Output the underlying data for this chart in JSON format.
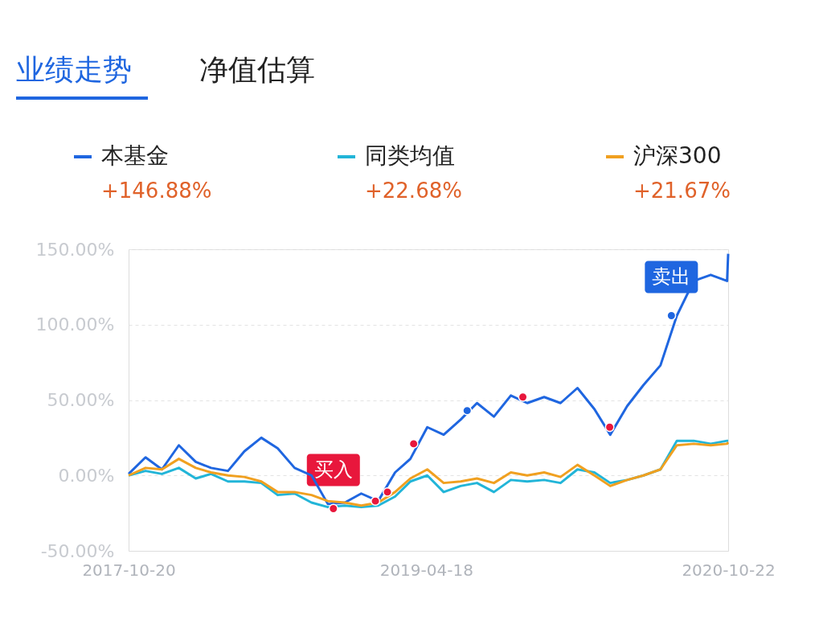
{
  "chart_data": {
    "type": "line",
    "title": "业绩走势",
    "subtitle": "净值估算",
    "x": [
      "2017-10-20",
      "2017-11-20",
      "2017-12-20",
      "2018-01-20",
      "2018-02-20",
      "2018-03-20",
      "2018-04-20",
      "2018-05-20",
      "2018-06-20",
      "2018-07-20",
      "2018-08-20",
      "2018-09-20",
      "2018-10-20",
      "2018-11-20",
      "2018-12-20",
      "2019-01-20",
      "2019-02-20",
      "2019-03-20",
      "2019-04-20",
      "2019-05-20",
      "2019-06-20",
      "2019-07-20",
      "2019-08-20",
      "2019-09-20",
      "2019-10-20",
      "2019-11-20",
      "2019-12-20",
      "2020-01-20",
      "2020-02-20",
      "2020-03-20",
      "2020-04-20",
      "2020-05-20",
      "2020-06-20",
      "2020-07-20",
      "2020-08-20",
      "2020-09-20",
      "2020-10-20",
      "2020-10-22"
    ],
    "series": [
      {
        "name": "本基金",
        "color": "#1f66e0",
        "values": [
          1,
          12,
          4,
          20,
          9,
          5,
          3,
          16,
          25,
          18,
          5,
          0,
          -19,
          -18,
          -12,
          -17,
          2,
          11,
          32,
          27,
          37,
          48,
          39,
          53,
          48,
          52,
          48,
          58,
          44,
          27,
          46,
          60,
          73,
          106,
          129,
          133,
          129,
          147
        ]
      },
      {
        "name": "同类均值",
        "color": "#22b5d8",
        "values": [
          0,
          3,
          1,
          5,
          -2,
          1,
          -4,
          -4,
          -5,
          -13,
          -12,
          -18,
          -21,
          -20,
          -21,
          -20,
          -14,
          -4,
          0,
          -11,
          -7,
          -5,
          -11,
          -3,
          -4,
          -3,
          -5,
          4,
          2,
          -5,
          -3,
          0,
          4,
          23,
          23,
          21,
          23,
          23
        ]
      },
      {
        "name": "沪深300",
        "color": "#f0a020",
        "values": [
          0,
          5,
          4,
          11,
          5,
          2,
          0,
          -1,
          -4,
          -11,
          -11,
          -13,
          -17,
          -18,
          -20,
          -18,
          -11,
          -2,
          4,
          -5,
          -4,
          -2,
          -5,
          2,
          0,
          2,
          -1,
          7,
          0,
          -7,
          -3,
          0,
          4,
          20,
          21,
          20,
          21,
          22
        ]
      },
      {
        "type": "scatter",
        "marker": "circle",
        "color": "#e8173c",
        "x": [
          "2018-10-30",
          "2019-01-15",
          "2019-02-06",
          "2019-03-26",
          "2019-10-12",
          "2020-03-19"
        ],
        "values": [
          -22,
          -17,
          -11,
          21,
          52,
          32
        ]
      },
      {
        "type": "scatter",
        "marker": "circle",
        "color": "#1f66e0",
        "x": [
          "2019-07-02",
          "2020-07-10"
        ],
        "values": [
          43,
          106
        ]
      }
    ],
    "annotations": [
      "+146.88%",
      "+22.68%",
      "+21.67%",
      {
        "text": "买入",
        "x": "2018-10-30",
        "y": -22
      },
      {
        "text": "卖出",
        "x": "2020-07-10",
        "y": 106
      }
    ],
    "xlim": [
      "2017-10-20",
      "2020-10-22"
    ],
    "xticks": [
      "2017-10-20",
      "2019-04-18",
      "2020-10-22"
    ],
    "ylim": [
      -50,
      150
    ],
    "yticks": [
      {
        "value": -50,
        "label": "-50.00%"
      },
      {
        "value": 0,
        "label": "0.00%"
      },
      {
        "value": 50,
        "label": "50.00%"
      },
      {
        "value": 100,
        "label": "100.00%"
      },
      {
        "value": 150,
        "label": "150.00%"
      }
    ],
    "grid": "y",
    "legend": "top",
    "marker": "none",
    "line_style": "solid"
  }
}
